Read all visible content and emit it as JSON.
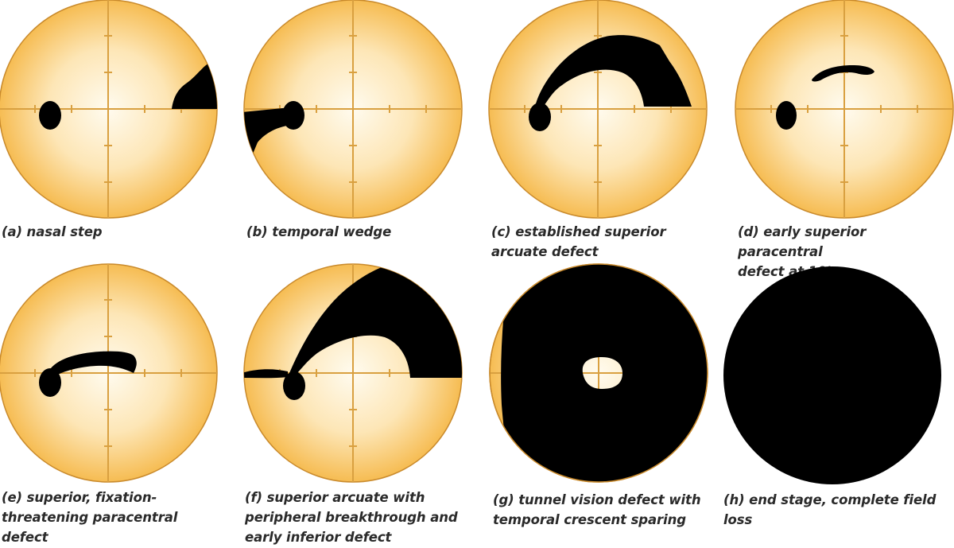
{
  "colors": {
    "field_center": "#fffbef",
    "field_edge": "#f6bc52",
    "axis": "#d9a040",
    "rim": "#c98a2c",
    "defect": "#000000",
    "caption_text": "#2a2a2a"
  },
  "panels": [
    {
      "id": "a",
      "caption": "(a) nasal step"
    },
    {
      "id": "b",
      "caption": "(b) temporal wedge"
    },
    {
      "id": "c",
      "caption": "(c) established superior\narcuate defect"
    },
    {
      "id": "d",
      "caption": "(d) early superior paracentral\ndefect at 10°"
    },
    {
      "id": "e",
      "caption": "(e) superior, fixation-\nthreatening paracentral\ndefect"
    },
    {
      "id": "f",
      "caption": "(f) superior arcuate with\nperipheral breakthrough and\nearly inferior defect"
    },
    {
      "id": "g",
      "caption": "(g) tunnel vision defect with\ntemporal crescent sparing"
    },
    {
      "id": "h",
      "caption": "(h) end stage, complete field\nloss"
    }
  ]
}
